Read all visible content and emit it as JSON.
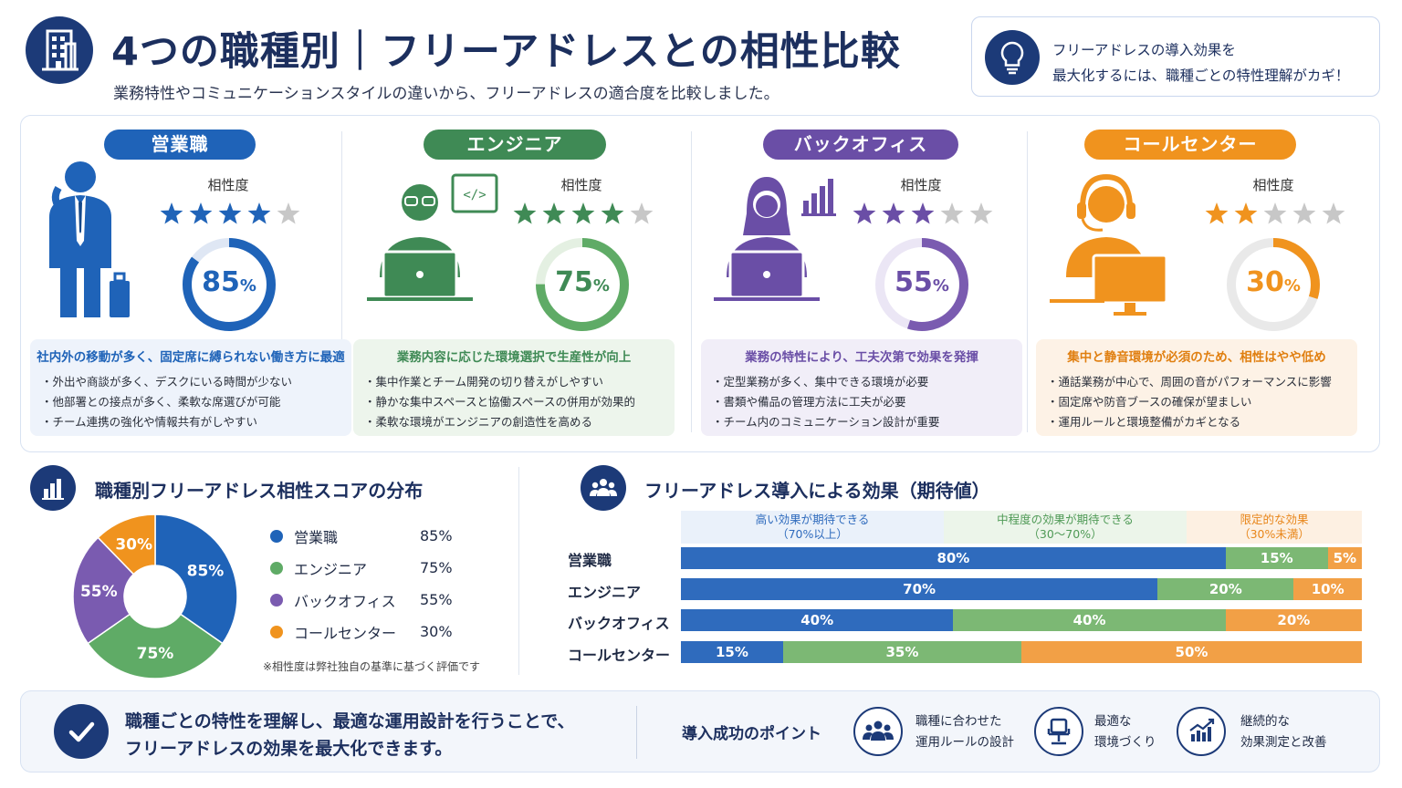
{
  "header": {
    "title": "4つの職種別｜フリーアドレスとの相性比較",
    "subtitle": "業務特性やコミュニケーションスタイルの違いから、フリーアドレスの適合度を比較しました。",
    "tip_line1": "フリーアドレスの導入効果を",
    "tip_line2": "最大化するには、職種ごとの特性理解がカギ！"
  },
  "colors": {
    "navy": "#1c3a78",
    "blue": "#1f63b8",
    "green": "#5fab66",
    "purple": "#7a5bb0",
    "orange": "#f0931e"
  },
  "compat_label": "相性度",
  "jobs": [
    {
      "name": "営業職",
      "stars": 4,
      "percent": "85",
      "unit": "%",
      "headline": "社内外の移動が多く、固定席に縛られない働き方に最適",
      "points": [
        "・外出や商談が多く、デスクにいる時間が少ない",
        "・他部署との接点が多く、柔軟な席選びが可能",
        "・チーム連携の強化や情報共有がしやすい"
      ]
    },
    {
      "name": "エンジニア",
      "stars": 4,
      "percent": "75",
      "unit": "%",
      "headline": "業務内容に応じた環境選択で生産性が向上",
      "points": [
        "・集中作業とチーム開発の切り替えがしやすい",
        "・静かな集中スペースと協働スペースの併用が効果的",
        "・柔軟な環境がエンジニアの創造性を高める"
      ]
    },
    {
      "name": "バックオフィス",
      "stars": 3,
      "percent": "55",
      "unit": "%",
      "headline": "業務の特性により、工夫次第で効果を発揮",
      "points": [
        "・定型業務が多く、集中できる環境が必要",
        "・書類や備品の管理方法に工夫が必要",
        "・チーム内のコミュニケーション設計が重要"
      ]
    },
    {
      "name": "コールセンター",
      "stars": 2,
      "percent": "30",
      "unit": "%",
      "headline": "集中と静音環境が必須のため、相性はやや低め",
      "points": [
        "・通話業務が中心で、周囲の音がパフォーマンスに影響",
        "・固定席や防音ブースの確保が望ましい",
        "・運用ルールと環境整備がカギとなる"
      ]
    }
  ],
  "pie_section": {
    "title": "職種別フリーアドレス相性スコアの分布",
    "note": "※相性度は弊社独自の基準に基づく評価です",
    "legend": [
      {
        "name": "営業職",
        "value": "85%"
      },
      {
        "name": "エンジニア",
        "value": "75%"
      },
      {
        "name": "バックオフィス",
        "value": "55%"
      },
      {
        "name": "コールセンター",
        "value": "30%"
      }
    ],
    "slice_labels": [
      "85%",
      "75%",
      "55%",
      "30%"
    ]
  },
  "effect_section": {
    "title": "フリーアドレス導入による効果（期待値）",
    "bands": [
      {
        "line1": "高い効果が期待できる",
        "line2": "（70%以上）"
      },
      {
        "line1": "中程度の効果が期待できる",
        "line2": "（30〜70%）"
      },
      {
        "line1": "限定的な効果",
        "line2": "（30%未満）"
      }
    ],
    "rows": [
      {
        "label": "営業職",
        "values": [
          "80%",
          "15%",
          "5%"
        ]
      },
      {
        "label": "エンジニア",
        "values": [
          "70%",
          "20%",
          "10%"
        ]
      },
      {
        "label": "バックオフィス",
        "values": [
          "40%",
          "40%",
          "20%"
        ]
      },
      {
        "label": "コールセンター",
        "values": [
          "15%",
          "35%",
          "50%"
        ]
      }
    ]
  },
  "chart_data": [
    {
      "type": "pie",
      "title": "職種別フリーアドレス相性スコアの分布",
      "categories": [
        "営業職",
        "エンジニア",
        "バックオフィス",
        "コールセンター"
      ],
      "values": [
        85,
        75,
        55,
        30
      ],
      "colors": [
        "#1f63b8",
        "#5fab66",
        "#7a5bb0",
        "#f0931e"
      ],
      "legend": "right"
    },
    {
      "type": "bar",
      "stacked": true,
      "orientation": "horizontal",
      "title": "フリーアドレス導入による効果（期待値）",
      "categories": [
        "営業職",
        "エンジニア",
        "バックオフィス",
        "コールセンター"
      ],
      "series": [
        {
          "name": "高い効果が期待できる（70%以上）",
          "values": [
            80,
            70,
            40,
            15
          ],
          "color": "#2f6bbd"
        },
        {
          "name": "中程度の効果が期待できる（30〜70%）",
          "values": [
            15,
            20,
            40,
            35
          ],
          "color": "#7cb874"
        },
        {
          "name": "限定的な効果（30%未満）",
          "values": [
            5,
            10,
            20,
            50
          ],
          "color": "#f2a046"
        }
      ],
      "xlim": [
        0,
        100
      ]
    }
  ],
  "bottom": {
    "line1": "職種ごとの特性を理解し、最適な運用設計を行うことで、",
    "line2": "フリーアドレスの効果を最大化できます。",
    "points_title": "導入成功のポイント",
    "points": [
      {
        "line1": "職種に合わせた",
        "line2": "運用ルールの設計"
      },
      {
        "line1": "最適な",
        "line2": "環境づくり"
      },
      {
        "line1": "継続的な",
        "line2": "効果測定と改善"
      }
    ]
  }
}
